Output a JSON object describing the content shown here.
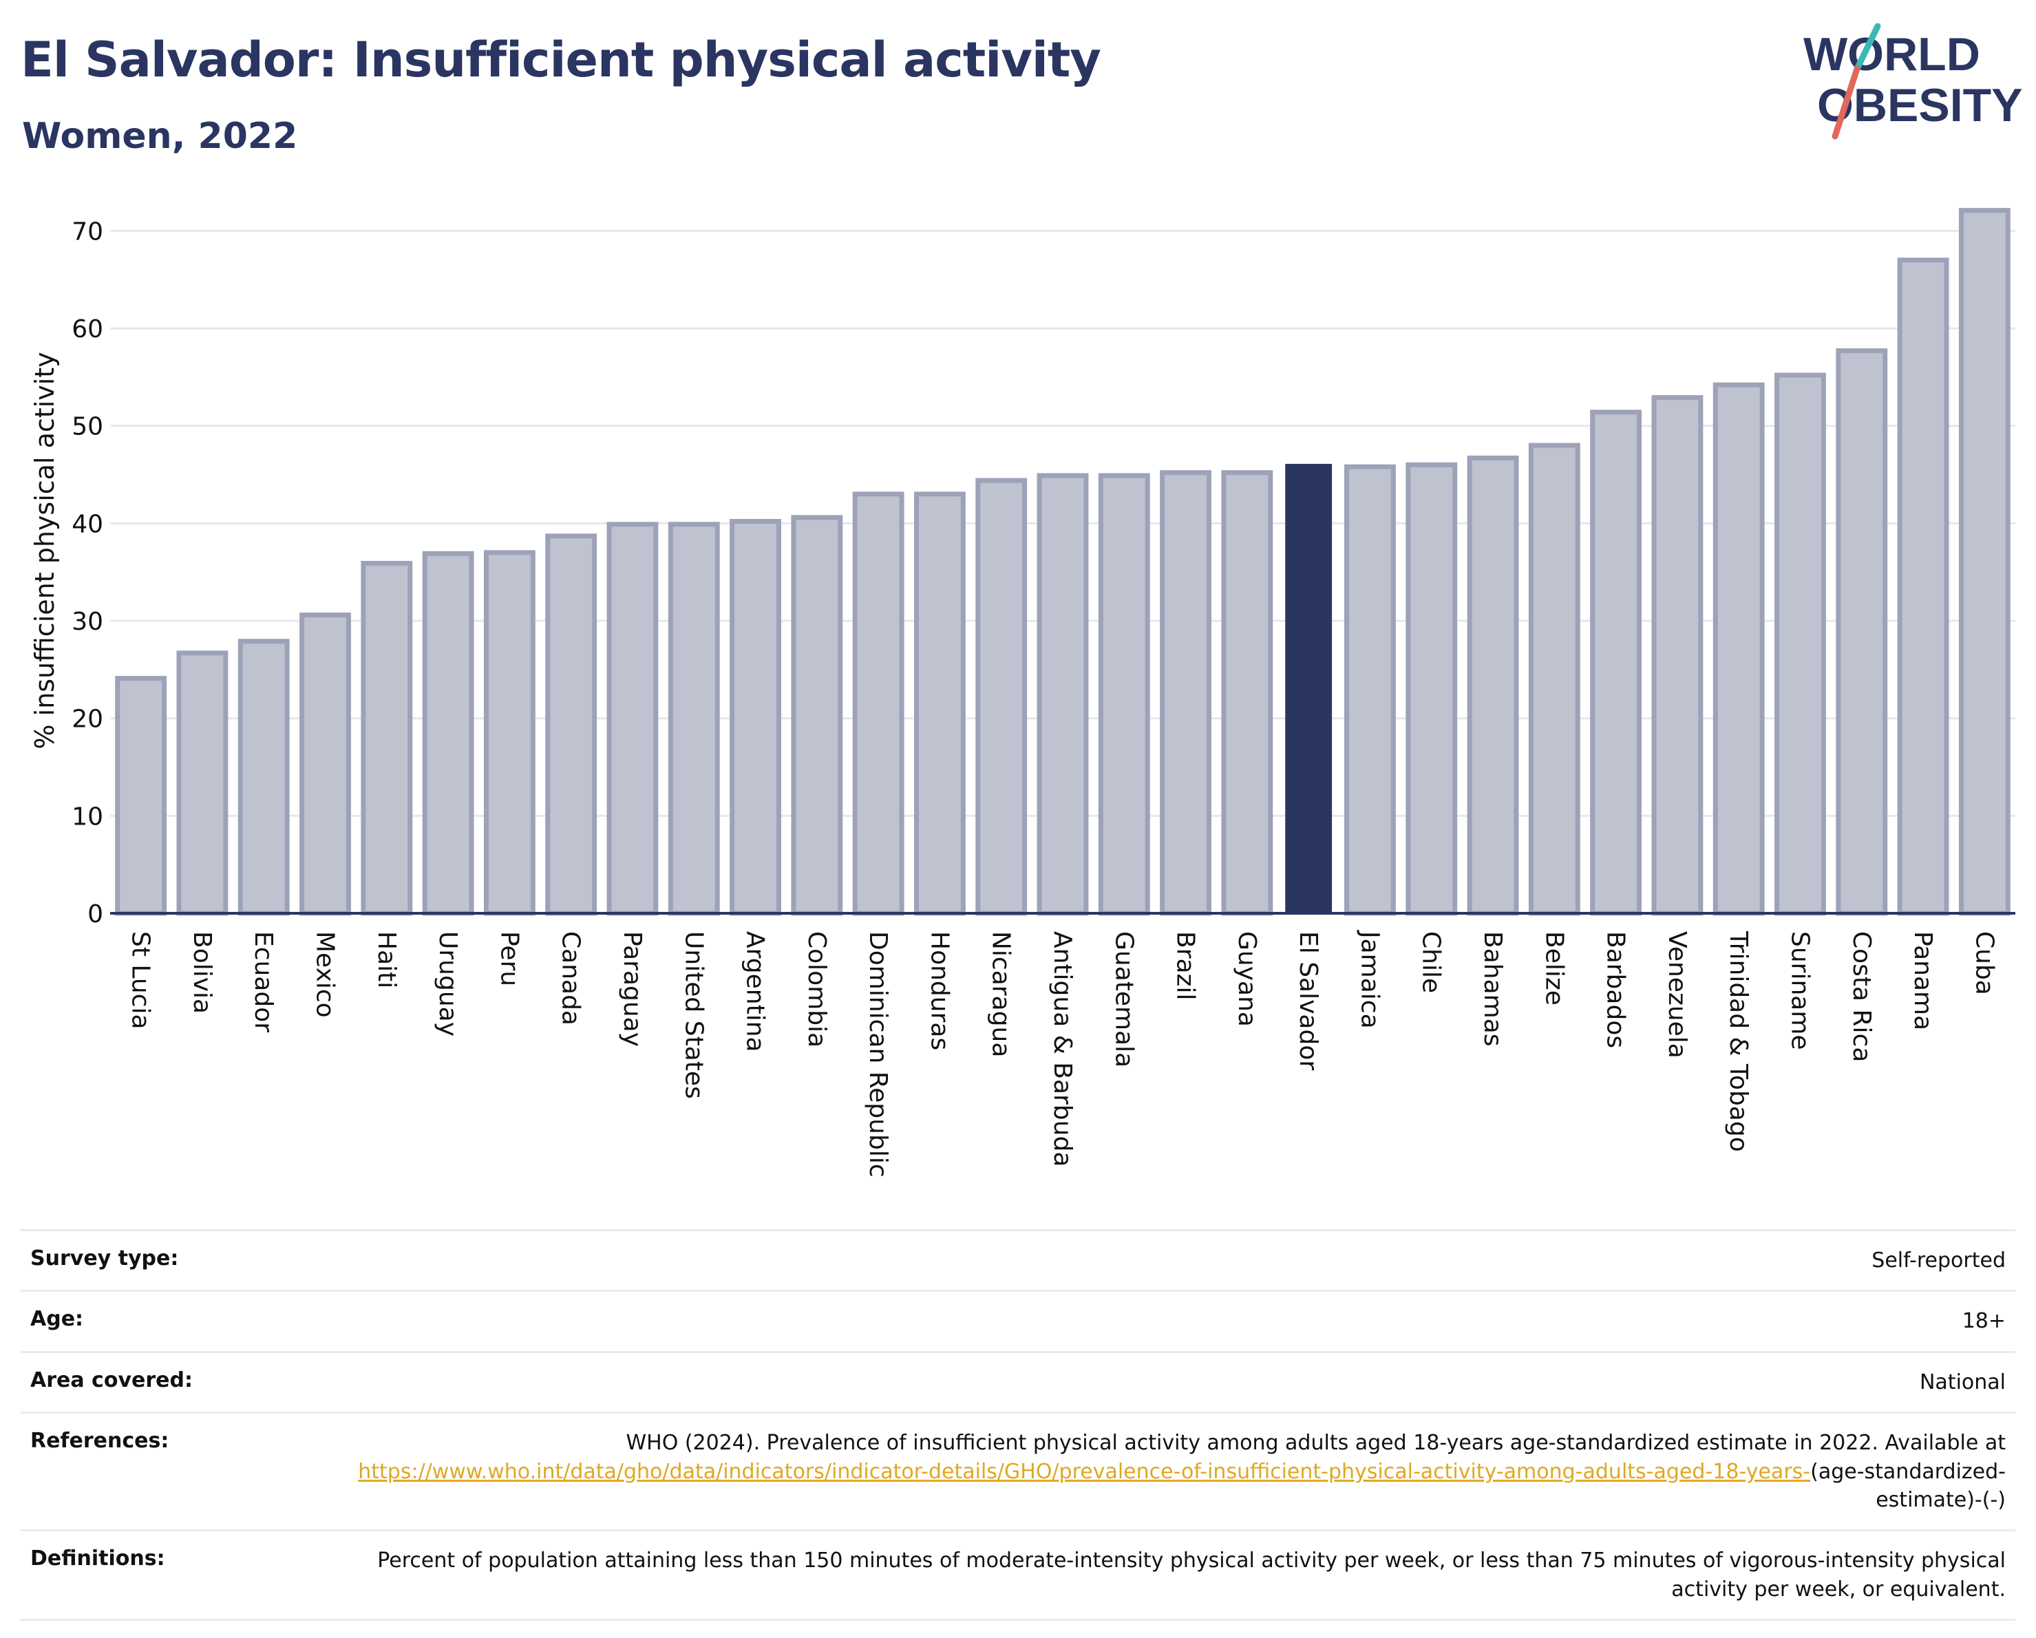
{
  "header": {
    "title": "El Salvador: Insufficient physical activity",
    "subtitle": "Women, 2022",
    "logo_line1": "WORLD",
    "logo_line2": "OBESITY"
  },
  "colors": {
    "highlight": "#2a3561",
    "bar_fill": "#bfc2cf",
    "bar_stroke": "#9da2b8",
    "link": "#e0a820",
    "logo_teal": "#3bb8b4",
    "logo_red": "#e2665a"
  },
  "chart_data": {
    "type": "bar",
    "ylabel": "% insufficient physical activity",
    "ylim": [
      0,
      72.5
    ],
    "yticks": [
      0,
      10,
      20,
      30,
      40,
      50,
      60,
      70
    ],
    "grid": true,
    "highlight": "El Salvador",
    "categories": [
      "St Lucia",
      "Bolivia",
      "Ecuador",
      "Mexico",
      "Haiti",
      "Uruguay",
      "Peru",
      "Canada",
      "Paraguay",
      "United States",
      "Argentina",
      "Colombia",
      "Dominican Republic",
      "Honduras",
      "Nicaragua",
      "Antigua & Barbuda",
      "Guatemala",
      "Brazil",
      "Guyana",
      "El Salvador",
      "Jamaica",
      "Chile",
      "Bahamas",
      "Belize",
      "Barbados",
      "Venezuela",
      "Trinidad & Tobago",
      "Suriname",
      "Costa Rica",
      "Panama",
      "Cuba"
    ],
    "values": [
      24.1,
      26.7,
      27.9,
      30.6,
      35.9,
      36.9,
      37.0,
      38.7,
      39.9,
      39.9,
      40.2,
      40.6,
      43.0,
      43.0,
      44.4,
      44.9,
      44.9,
      45.2,
      45.2,
      46.1,
      45.8,
      46.0,
      46.7,
      48.0,
      51.4,
      52.9,
      54.2,
      55.2,
      57.7,
      67.0,
      72.1
    ]
  },
  "meta": {
    "survey_type_label": "Survey type:",
    "survey_type_value": "Self-reported",
    "age_label": "Age:",
    "age_value": "18+",
    "area_label": "Area covered:",
    "area_value": "National",
    "references_label": "References:",
    "references_text": "WHO (2024). Prevalence of insufficient physical activity among adults aged 18-years age-standardized estimate in 2022. Available at",
    "references_link": "https://www.who.int/data/gho/data/indicators/indicator-details/GHO/prevalence-of-insufficient-physical-activity-among-adults-aged-18-years-",
    "references_tail": "(age-standardized-estimate)-(-)",
    "definitions_label": "Definitions:",
    "definitions_text": "Percent of population attaining less than 150 minutes of moderate-intensity physical activity per week, or less than 75 minutes of vigorous-intensity physical activity per week, or equivalent."
  }
}
